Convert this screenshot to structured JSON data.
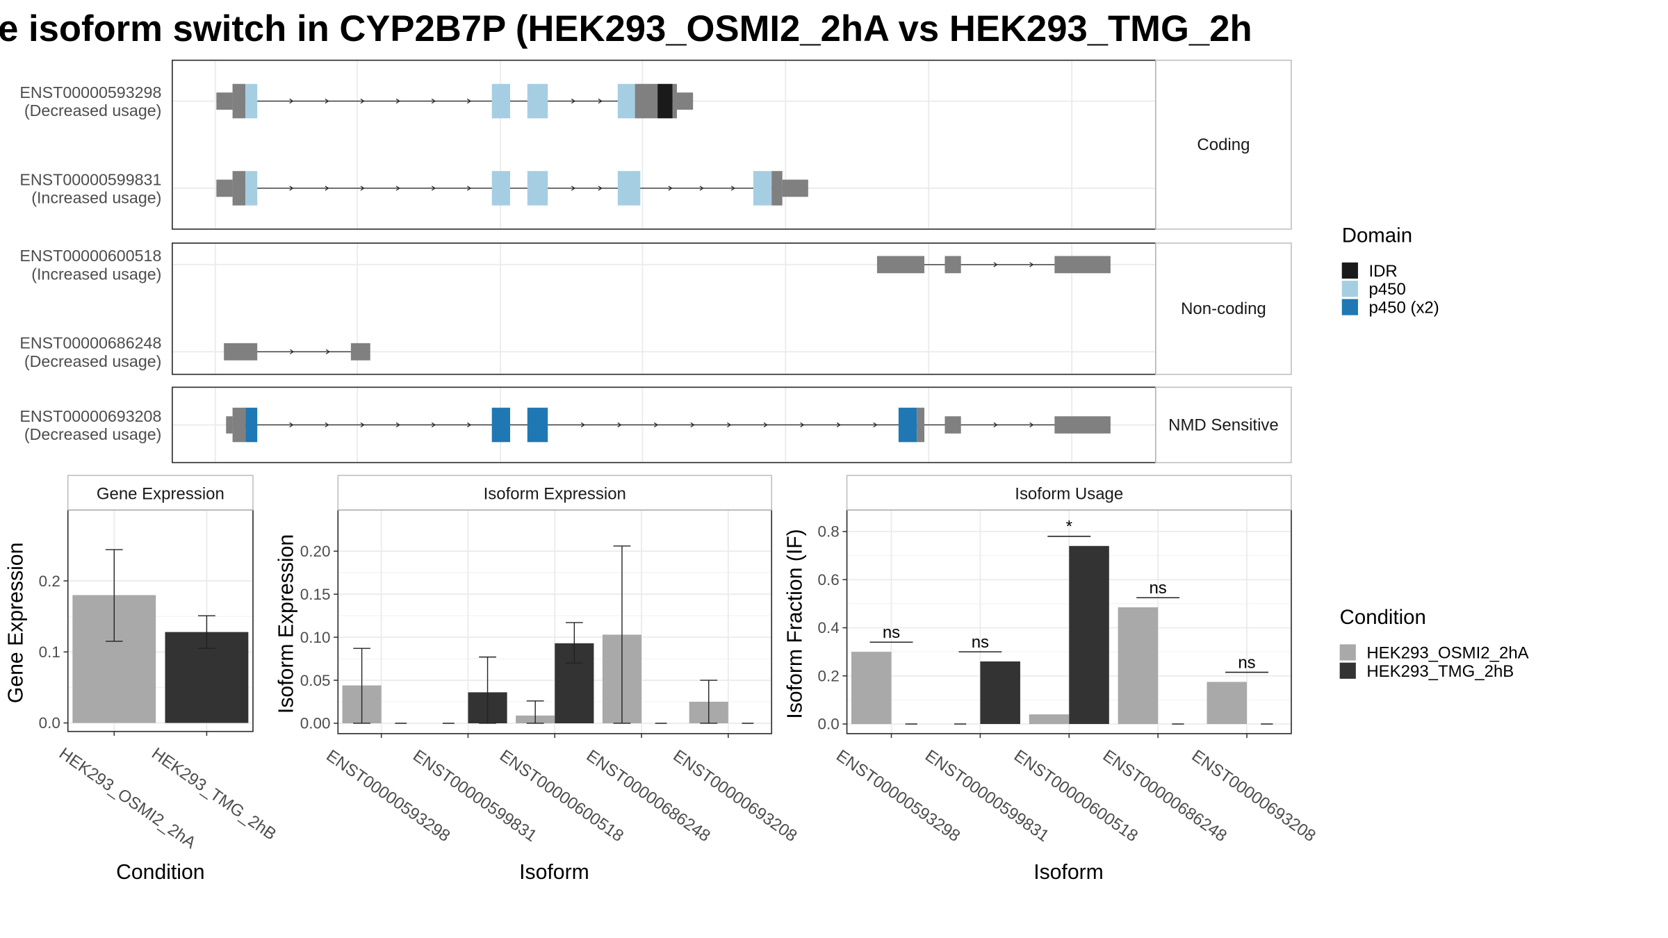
{
  "title": "e isoform switch in CYP2B7P (HEK293_OSMI2_2hA vs HEK293_TMG_2h",
  "colors": {
    "idr": "#1a1a1a",
    "p450": "#a6cee3",
    "p450_x2": "#1f78b4",
    "exon": "#808080",
    "cond_a": "#a9a9a9",
    "cond_b": "#333333",
    "strip_bg": "#ffffff",
    "panel_border": "#333333",
    "grid": "#ebebeb"
  },
  "structure": {
    "panels": [
      {
        "label": "Coding",
        "transcripts": [
          {
            "id": "ENST00000593298",
            "usage": "(Decreased usage)",
            "exons": [
              {
                "s": 201,
                "e": 216,
                "h": "small",
                "d": "none"
              },
              {
                "s": 216,
                "e": 228,
                "h": "big",
                "d": "none"
              },
              {
                "s": 228,
                "e": 239,
                "h": "big",
                "d": "p450"
              },
              {
                "s": 457,
                "e": 474,
                "h": "big",
                "d": "p450"
              },
              {
                "s": 490,
                "e": 509,
                "h": "big",
                "d": "p450"
              },
              {
                "s": 574,
                "e": 590,
                "h": "big",
                "d": "p450"
              },
              {
                "s": 590,
                "e": 611,
                "h": "big",
                "d": "none"
              },
              {
                "s": 611,
                "e": 625,
                "h": "big",
                "d": "IDR"
              },
              {
                "s": 625,
                "e": 629,
                "h": "big",
                "d": "none"
              },
              {
                "s": 629,
                "e": 644,
                "h": "small",
                "d": "none"
              }
            ]
          },
          {
            "id": "ENST00000599831",
            "usage": "(Increased usage)",
            "exons": [
              {
                "s": 201,
                "e": 216,
                "h": "small",
                "d": "none"
              },
              {
                "s": 216,
                "e": 228,
                "h": "big",
                "d": "none"
              },
              {
                "s": 228,
                "e": 239,
                "h": "big",
                "d": "p450"
              },
              {
                "s": 457,
                "e": 474,
                "h": "big",
                "d": "p450"
              },
              {
                "s": 490,
                "e": 509,
                "h": "big",
                "d": "p450"
              },
              {
                "s": 574,
                "e": 595,
                "h": "big",
                "d": "p450"
              },
              {
                "s": 700,
                "e": 717,
                "h": "big",
                "d": "p450"
              },
              {
                "s": 717,
                "e": 727,
                "h": "big",
                "d": "none"
              },
              {
                "s": 727,
                "e": 751,
                "h": "small",
                "d": "none"
              }
            ]
          }
        ]
      },
      {
        "label": "Non-coding",
        "transcripts": [
          {
            "id": "ENST00000600518",
            "usage": "(Increased usage)",
            "exons": [
              {
                "s": 815,
                "e": 859,
                "h": "small",
                "d": "none"
              },
              {
                "s": 878,
                "e": 893,
                "h": "small",
                "d": "none"
              },
              {
                "s": 980,
                "e": 1032,
                "h": "small",
                "d": "none"
              }
            ]
          },
          {
            "id": "ENST00000686248",
            "usage": "(Decreased usage)",
            "exons": [
              {
                "s": 208,
                "e": 239,
                "h": "small",
                "d": "none"
              },
              {
                "s": 326,
                "e": 344,
                "h": "small",
                "d": "none"
              }
            ]
          }
        ]
      },
      {
        "label": "NMD Sensitive",
        "transcripts": [
          {
            "id": "ENST00000693208",
            "usage": "(Decreased usage)",
            "exons": [
              {
                "s": 210,
                "e": 216,
                "h": "small",
                "d": "none"
              },
              {
                "s": 216,
                "e": 228,
                "h": "big",
                "d": "none"
              },
              {
                "s": 228,
                "e": 239,
                "h": "big",
                "d": "p450_x2"
              },
              {
                "s": 457,
                "e": 474,
                "h": "big",
                "d": "p450_x2"
              },
              {
                "s": 490,
                "e": 509,
                "h": "big",
                "d": "p450_x2"
              },
              {
                "s": 835,
                "e": 852,
                "h": "big",
                "d": "p450_x2"
              },
              {
                "s": 852,
                "e": 859,
                "h": "big",
                "d": "none"
              },
              {
                "s": 878,
                "e": 893,
                "h": "small",
                "d": "none"
              },
              {
                "s": 980,
                "e": 1032,
                "h": "small",
                "d": "none"
              }
            ]
          }
        ]
      }
    ]
  },
  "legend_domain": {
    "title": "Domain",
    "items": [
      {
        "label": "IDR",
        "color": "#1a1a1a"
      },
      {
        "label": "p450",
        "color": "#a6cee3"
      },
      {
        "label": "p450 (x2)",
        "color": "#1f78b4"
      }
    ]
  },
  "legend_condition": {
    "title": "Condition",
    "items": [
      {
        "label": "HEK293_OSMI2_2hA",
        "color": "#a9a9a9"
      },
      {
        "label": "HEK293_TMG_2hB",
        "color": "#333333"
      }
    ]
  },
  "chart_data": [
    {
      "type": "bar",
      "strip": "Gene Expression",
      "xlabel": "Condition",
      "ylabel": "Gene Expression",
      "ylim": [
        -0.012,
        0.3
      ],
      "yticks": [
        0.0,
        0.1,
        0.2
      ],
      "ytick_labels": [
        "0.0",
        "0.1",
        "0.2"
      ],
      "categories": [
        "HEK293_OSMI2_2hA",
        "HEK293_TMG_2hB"
      ],
      "series": [
        {
          "name": "HEK293_OSMI2_2hA",
          "values": [
            0.18,
            null
          ],
          "err_low": [
            0.115,
            null
          ],
          "err_high": [
            0.244,
            null
          ]
        },
        {
          "name": "HEK293_TMG_2hB",
          "values": [
            null,
            0.128
          ],
          "err_low": [
            null,
            0.105
          ],
          "err_high": [
            null,
            0.151
          ]
        }
      ]
    },
    {
      "type": "bar",
      "strip": "Isoform Expression",
      "xlabel": "Isoform",
      "ylabel": "Isoform Expression",
      "ylim": [
        -0.012,
        0.248
      ],
      "yticks": [
        0.0,
        0.05,
        0.1,
        0.15,
        0.2
      ],
      "ytick_labels": [
        "0.00",
        "0.05",
        "0.10",
        "0.15",
        "0.20"
      ],
      "categories": [
        "ENST00000593298",
        "ENST00000599831",
        "ENST00000600518",
        "ENST00000686248",
        "ENST00000693208"
      ],
      "series": [
        {
          "name": "HEK293_OSMI2_2hA",
          "values": [
            0.044,
            0.0,
            0.009,
            0.103,
            0.025
          ],
          "err_low": [
            0.0,
            null,
            0.0,
            0.0,
            0.0
          ],
          "err_high": [
            0.087,
            null,
            0.026,
            0.206,
            0.05
          ]
        },
        {
          "name": "HEK293_TMG_2hB",
          "values": [
            0.0,
            0.036,
            0.093,
            0.0,
            0.0
          ],
          "err_low": [
            null,
            0.0,
            0.07,
            null,
            null
          ],
          "err_high": [
            null,
            0.077,
            0.117,
            null,
            null
          ]
        }
      ]
    },
    {
      "type": "bar",
      "strip": "Isoform Usage",
      "xlabel": "Isoform",
      "ylabel": "Isoform Fraction (IF)",
      "ylim": [
        -0.04,
        0.89
      ],
      "yticks": [
        0.0,
        0.2,
        0.4,
        0.6,
        0.8
      ],
      "ytick_labels": [
        "0.0",
        "0.2",
        "0.4",
        "0.6",
        "0.8"
      ],
      "categories": [
        "ENST00000593298",
        "ENST00000599831",
        "ENST00000600518",
        "ENST00000686248",
        "ENST00000693208"
      ],
      "series": [
        {
          "name": "HEK293_OSMI2_2hA",
          "values": [
            0.3,
            0.0,
            0.04,
            0.485,
            0.175
          ]
        },
        {
          "name": "HEK293_TMG_2hB",
          "values": [
            0.0,
            0.26,
            0.74,
            0.0,
            0.0
          ]
        }
      ],
      "significance": [
        {
          "label": "ns",
          "y": 0.34
        },
        {
          "label": "ns",
          "y": 0.3
        },
        {
          "label": "*",
          "y": 0.78
        },
        {
          "label": "ns",
          "y": 0.525
        },
        {
          "label": "ns",
          "y": 0.215
        }
      ]
    }
  ]
}
